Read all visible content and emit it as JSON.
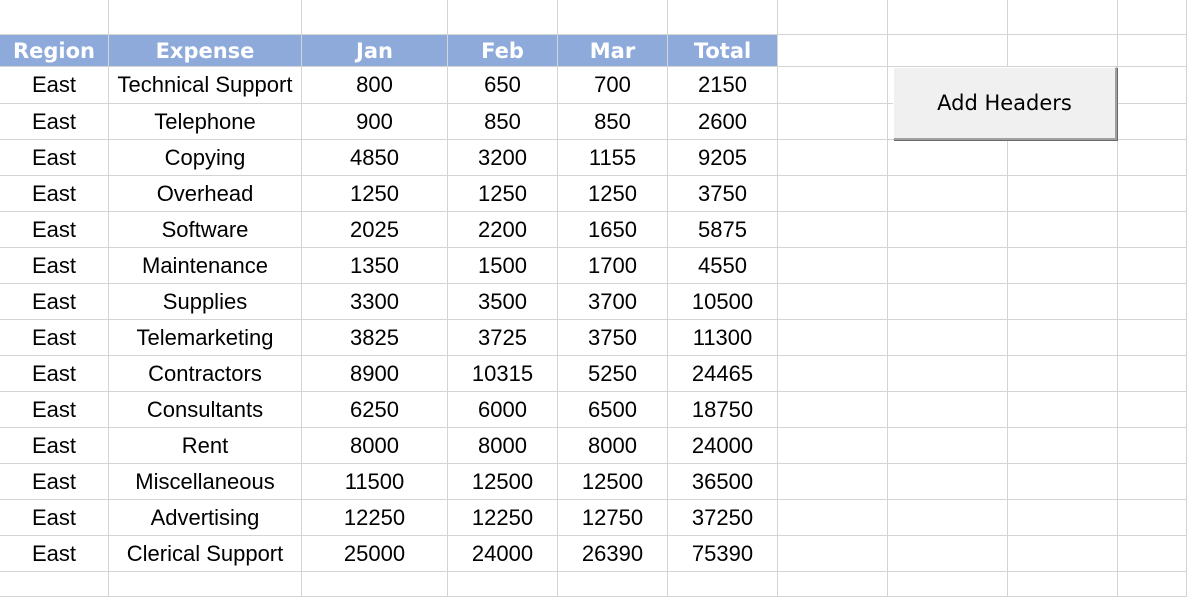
{
  "sheet": {
    "header_fill": "#8eaadb",
    "gridline_color": "#d4d4d4",
    "columns": [
      "Region",
      "Expense",
      "Jan",
      "Feb",
      "Mar",
      "Total"
    ],
    "rows": [
      [
        "East",
        "Technical Support",
        "800",
        "650",
        "700",
        "2150"
      ],
      [
        "East",
        "Telephone",
        "900",
        "850",
        "850",
        "2600"
      ],
      [
        "East",
        "Copying",
        "4850",
        "3200",
        "1155",
        "9205"
      ],
      [
        "East",
        "Overhead",
        "1250",
        "1250",
        "1250",
        "3750"
      ],
      [
        "East",
        "Software",
        "2025",
        "2200",
        "1650",
        "5875"
      ],
      [
        "East",
        "Maintenance",
        "1350",
        "1500",
        "1700",
        "4550"
      ],
      [
        "East",
        "Supplies",
        "3300",
        "3500",
        "3700",
        "10500"
      ],
      [
        "East",
        "Telemarketing",
        "3825",
        "3725",
        "3750",
        "11300"
      ],
      [
        "East",
        "Contractors",
        "8900",
        "10315",
        "5250",
        "24465"
      ],
      [
        "East",
        "Consultants",
        "6250",
        "6000",
        "6500",
        "18750"
      ],
      [
        "East",
        "Rent",
        "8000",
        "8000",
        "8000",
        "24000"
      ],
      [
        "East",
        "Miscellaneous",
        "11500",
        "12500",
        "12500",
        "36500"
      ],
      [
        "East",
        "Advertising",
        "12250",
        "12250",
        "12750",
        "37250"
      ],
      [
        "East",
        "Clerical Support",
        "25000",
        "24000",
        "26390",
        "75390"
      ]
    ]
  },
  "button": {
    "label": "Add Headers"
  }
}
